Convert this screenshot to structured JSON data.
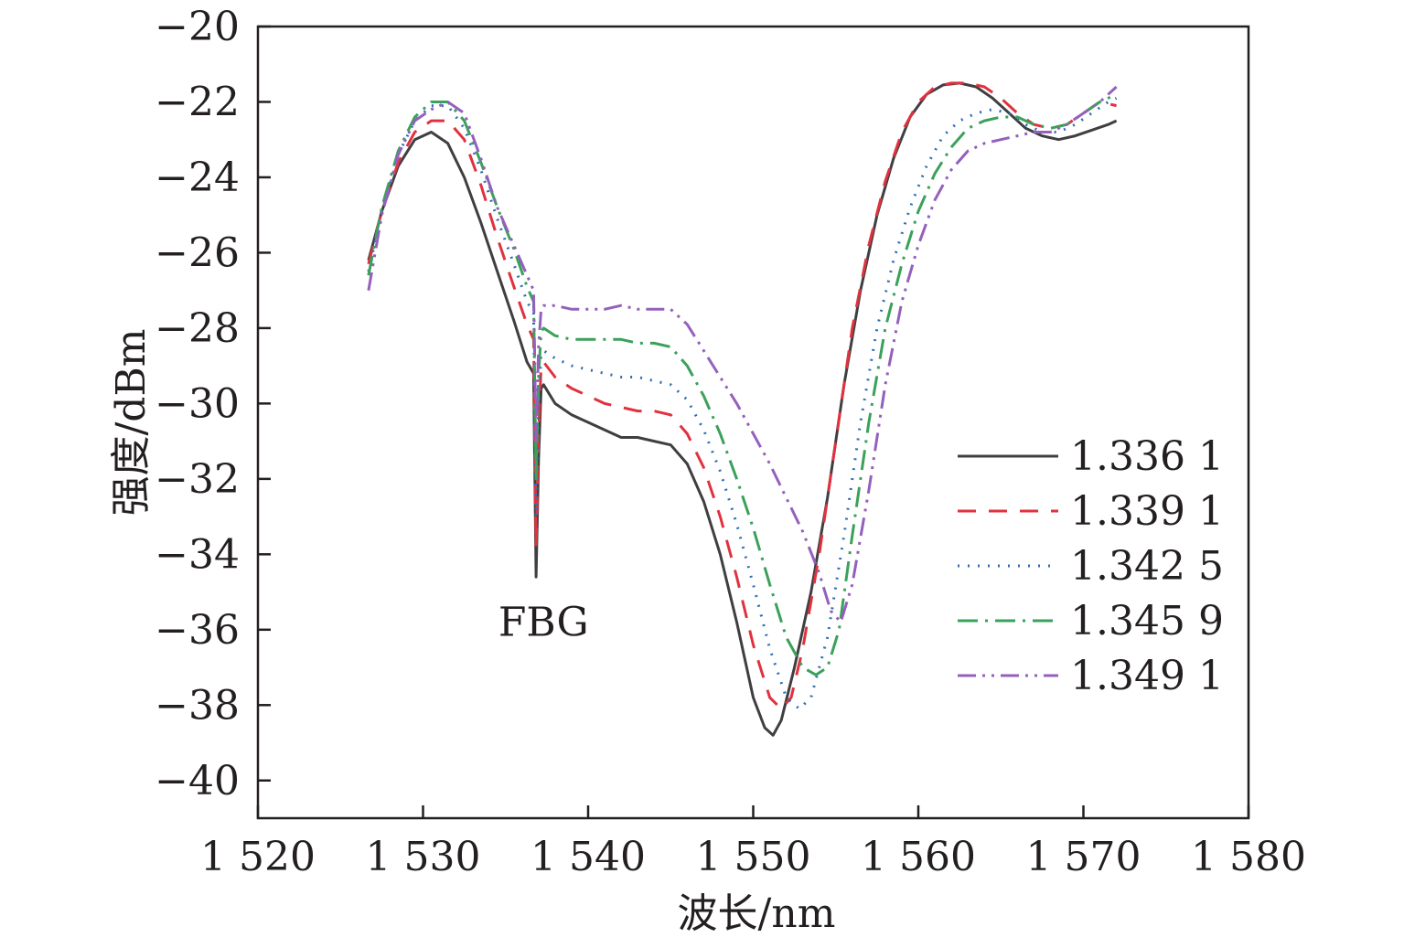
{
  "chart_data": {
    "type": "line",
    "xlabel": "波长/nm",
    "ylabel": "强度/dBm",
    "xlim": [
      1520,
      1580
    ],
    "ylim": [
      -41,
      -20
    ],
    "x_ticks": [
      1520,
      1530,
      1540,
      1550,
      1560,
      1570,
      1580
    ],
    "x_tick_labels": [
      "1 520",
      "1 530",
      "1 540",
      "1 550",
      "1 560",
      "1 570",
      "1 580"
    ],
    "y_ticks": [
      -20,
      -22,
      -24,
      -26,
      -28,
      -30,
      -32,
      -34,
      -36,
      -38,
      -40
    ],
    "y_tick_labels": [
      "−20",
      "−22",
      "−24",
      "−26",
      "−28",
      "−30",
      "−32",
      "−34",
      "−36",
      "−38",
      "−40"
    ],
    "grid": false,
    "legend_position": "right",
    "annotations": [
      {
        "text": "FBG",
        "x": 1537.3,
        "y": -35.8
      }
    ],
    "series": [
      {
        "name": "1.336 1",
        "color": "#3f3f41",
        "dash": "solid",
        "x": [
          1526.7,
          1527.5,
          1528.5,
          1529.5,
          1530.5,
          1531.5,
          1532.5,
          1533.5,
          1534.5,
          1535.5,
          1536.3,
          1536.7,
          1536.85,
          1537.0,
          1537.15,
          1537.3,
          1538,
          1539,
          1540,
          1541,
          1542,
          1543,
          1544,
          1545,
          1546,
          1547,
          1548,
          1549,
          1550,
          1550.7,
          1551.2,
          1551.7,
          1552.5,
          1553.5,
          1554.5,
          1555.5,
          1556.5,
          1557.5,
          1558.5,
          1559.5,
          1560.5,
          1561.5,
          1562.5,
          1563.5,
          1564.5,
          1565.5,
          1566.5,
          1567.5,
          1568.5,
          1569.5,
          1570.5,
          1571.5,
          1572
        ],
        "y": [
          -26.2,
          -24.9,
          -23.7,
          -23.0,
          -22.8,
          -23.1,
          -24.0,
          -25.2,
          -26.5,
          -27.8,
          -28.9,
          -29.2,
          -34.6,
          -31.5,
          -29.6,
          -29.5,
          -30.0,
          -30.3,
          -30.5,
          -30.7,
          -30.9,
          -30.9,
          -31.0,
          -31.1,
          -31.6,
          -32.6,
          -34.0,
          -35.8,
          -37.8,
          -38.6,
          -38.8,
          -38.4,
          -37.0,
          -35.0,
          -32.5,
          -29.5,
          -27.0,
          -25.0,
          -23.5,
          -22.4,
          -21.8,
          -21.55,
          -21.5,
          -21.6,
          -21.9,
          -22.3,
          -22.7,
          -22.9,
          -23.0,
          -22.9,
          -22.75,
          -22.6,
          -22.5
        ]
      },
      {
        "name": "1.339 1",
        "color": "#e0323e",
        "dash": "dashed",
        "x": [
          1526.7,
          1527.5,
          1528.5,
          1529.5,
          1530.5,
          1531.5,
          1532.5,
          1533.5,
          1534.5,
          1535.5,
          1536.3,
          1536.7,
          1536.85,
          1537.0,
          1537.15,
          1537.3,
          1538,
          1539,
          1540,
          1541,
          1542,
          1543,
          1544,
          1545,
          1546,
          1547,
          1548,
          1549,
          1550,
          1551,
          1551.7,
          1552.3,
          1553,
          1554,
          1555,
          1556,
          1557,
          1558,
          1559,
          1560,
          1561,
          1562,
          1563,
          1564,
          1565,
          1566,
          1567,
          1568,
          1569,
          1570,
          1571,
          1572
        ],
        "y": [
          -26.3,
          -24.9,
          -23.6,
          -22.8,
          -22.5,
          -22.5,
          -23.0,
          -24.2,
          -25.6,
          -26.9,
          -27.9,
          -28.3,
          -33.8,
          -30.8,
          -29.0,
          -28.9,
          -29.3,
          -29.6,
          -29.8,
          -30.0,
          -30.1,
          -30.2,
          -30.2,
          -30.3,
          -30.8,
          -31.7,
          -33.0,
          -34.6,
          -36.4,
          -37.8,
          -38.1,
          -37.8,
          -36.5,
          -34.0,
          -31.0,
          -28.0,
          -25.8,
          -24.1,
          -22.8,
          -22.0,
          -21.6,
          -21.5,
          -21.5,
          -21.6,
          -21.9,
          -22.3,
          -22.6,
          -22.7,
          -22.6,
          -22.3,
          -22.0,
          -22.1
        ]
      },
      {
        "name": "1.342 5",
        "color": "#2f6db5",
        "dash": "dotted",
        "x": [
          1526.7,
          1527.5,
          1528.5,
          1529.5,
          1530.5,
          1531.5,
          1532.5,
          1533.5,
          1534.5,
          1535.5,
          1536.3,
          1536.7,
          1536.85,
          1537.0,
          1537.15,
          1537.3,
          1538,
          1539,
          1540,
          1541,
          1542,
          1543,
          1544,
          1545,
          1546,
          1547,
          1548,
          1549,
          1550,
          1551,
          1552,
          1552.8,
          1553.5,
          1554.5,
          1555.5,
          1556.5,
          1557.5,
          1558.5,
          1559.5,
          1560.5,
          1561.5,
          1562.5,
          1563.5,
          1564.5,
          1565.5,
          1566.5,
          1567.5,
          1568.5,
          1569.5,
          1570.5,
          1571.5,
          1572
        ],
        "y": [
          -26.5,
          -24.9,
          -23.4,
          -22.5,
          -22.1,
          -22.1,
          -22.7,
          -23.8,
          -25.1,
          -26.3,
          -27.3,
          -27.6,
          -33.0,
          -30.0,
          -28.7,
          -28.6,
          -28.8,
          -29.0,
          -29.1,
          -29.2,
          -29.3,
          -29.3,
          -29.4,
          -29.5,
          -29.9,
          -30.7,
          -31.8,
          -33.2,
          -34.8,
          -36.5,
          -37.8,
          -38.1,
          -37.8,
          -36.2,
          -33.5,
          -30.5,
          -28.0,
          -26.2,
          -24.8,
          -23.7,
          -22.9,
          -22.5,
          -22.3,
          -22.2,
          -22.3,
          -22.6,
          -22.8,
          -22.8,
          -22.6,
          -22.3,
          -22.0,
          -21.9
        ]
      },
      {
        "name": "1.345 9",
        "color": "#3aa15a",
        "dash": "dashdot",
        "x": [
          1526.7,
          1527.5,
          1528.5,
          1529.5,
          1530.5,
          1531.5,
          1532.5,
          1533.5,
          1534.5,
          1535.5,
          1536.3,
          1536.7,
          1536.85,
          1537.0,
          1537.15,
          1537.3,
          1538,
          1539,
          1540,
          1541,
          1542,
          1543,
          1544,
          1545,
          1546,
          1547,
          1548,
          1549,
          1550,
          1551,
          1552,
          1553,
          1553.8,
          1554.5,
          1555.2,
          1556,
          1557,
          1558,
          1559,
          1560,
          1561,
          1562,
          1563,
          1564,
          1565,
          1566,
          1567,
          1568,
          1569,
          1570,
          1571,
          1572
        ],
        "y": [
          -26.6,
          -24.8,
          -23.3,
          -22.4,
          -22.0,
          -22.0,
          -22.5,
          -23.6,
          -24.8,
          -25.9,
          -26.9,
          -27.3,
          -32.0,
          -29.3,
          -28.1,
          -28.0,
          -28.2,
          -28.3,
          -28.3,
          -28.3,
          -28.3,
          -28.4,
          -28.4,
          -28.5,
          -29.0,
          -29.8,
          -30.8,
          -32.0,
          -33.3,
          -34.8,
          -36.2,
          -37.0,
          -37.2,
          -37.0,
          -36.0,
          -33.5,
          -30.5,
          -28.0,
          -26.3,
          -24.9,
          -23.9,
          -23.2,
          -22.7,
          -22.5,
          -22.4,
          -22.4,
          -22.6,
          -22.7,
          -22.6,
          -22.3,
          -22.0,
          -21.8
        ]
      },
      {
        "name": "1.349 1",
        "color": "#9460bd",
        "dash": "dashdotdot",
        "x": [
          1526.7,
          1527.5,
          1528.5,
          1529.5,
          1530.5,
          1531.5,
          1532.5,
          1533.5,
          1534.5,
          1535.5,
          1536.3,
          1536.7,
          1536.85,
          1537.0,
          1537.15,
          1537.3,
          1538,
          1539,
          1540,
          1541,
          1542,
          1543,
          1544,
          1545,
          1546,
          1547,
          1548,
          1549,
          1550,
          1551,
          1552,
          1553,
          1554,
          1554.7,
          1555.3,
          1556,
          1557,
          1558,
          1559,
          1560,
          1561,
          1562,
          1563,
          1564,
          1565,
          1566,
          1567,
          1568,
          1569,
          1570,
          1571,
          1572
        ],
        "y": [
          -27.0,
          -25.0,
          -23.4,
          -22.5,
          -22.2,
          -22.0,
          -22.3,
          -23.5,
          -24.8,
          -25.8,
          -26.6,
          -27.0,
          -31.0,
          -28.5,
          -27.5,
          -27.4,
          -27.4,
          -27.5,
          -27.5,
          -27.5,
          -27.4,
          -27.5,
          -27.5,
          -27.5,
          -27.9,
          -28.6,
          -29.3,
          -30.0,
          -30.8,
          -31.6,
          -32.5,
          -33.4,
          -34.5,
          -35.5,
          -35.8,
          -34.8,
          -32.3,
          -29.5,
          -27.3,
          -25.8,
          -24.6,
          -23.8,
          -23.3,
          -23.1,
          -23.0,
          -22.9,
          -22.8,
          -22.8,
          -22.6,
          -22.3,
          -22.0,
          -21.6
        ]
      }
    ]
  }
}
